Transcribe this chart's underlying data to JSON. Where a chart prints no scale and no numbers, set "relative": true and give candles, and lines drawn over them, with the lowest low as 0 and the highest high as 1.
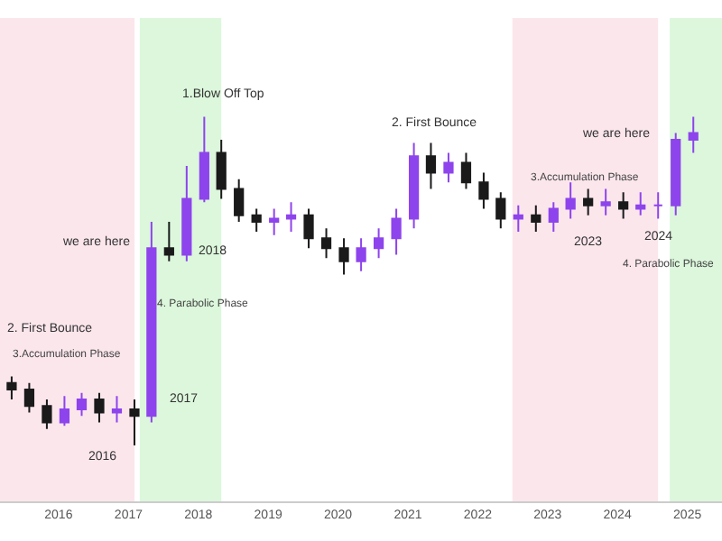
{
  "chart_data": {
    "type": "candlestick",
    "relative": true,
    "tick_labels": "x",
    "grid": false,
    "legend": false,
    "colors": [
      "#1a1a1a",
      "#1a1a1a",
      "#1a1a1a",
      "#8e44ec",
      "#8e44ec",
      "#1a1a1a",
      "#8e44ec",
      "#1a1a1a",
      "#8e44ec",
      "#1a1a1a",
      "#8e44ec",
      "#8e44ec",
      "#1a1a1a",
      "#1a1a1a",
      "#1a1a1a",
      "#8e44ec",
      "#8e44ec",
      "#1a1a1a",
      "#1a1a1a",
      "#1a1a1a",
      "#8e44ec",
      "#8e44ec",
      "#8e44ec",
      "#8e44ec",
      "#1a1a1a",
      "#8e44ec",
      "#1a1a1a",
      "#1a1a1a",
      "#1a1a1a",
      "#8e44ec",
      "#1a1a1a",
      "#8e44ec",
      "#8e44ec",
      "#1a1a1a",
      "#8e44ec",
      "#1a1a1a",
      "#8e44ec",
      "#8e44ec",
      "#8e44ec",
      "#8e44ec"
    ],
    "x": [
      "2015-05",
      "2015-08",
      "2015-11",
      "2016-02",
      "2016-05",
      "2016-08",
      "2016-11",
      "2017-02",
      "2017-05",
      "2017-08",
      "2017-11",
      "2018-02",
      "2018-05",
      "2018-08",
      "2018-11",
      "2019-02",
      "2019-05",
      "2019-08",
      "2019-11",
      "2020-02",
      "2020-05",
      "2020-08",
      "2020-11",
      "2021-02",
      "2021-05",
      "2021-08",
      "2021-11",
      "2022-02",
      "2022-05",
      "2022-08",
      "2022-11",
      "2023-02",
      "2023-05",
      "2023-08",
      "2023-11",
      "2024-02",
      "2024-05",
      "2024-08",
      "2024-11",
      "2025-02"
    ],
    "ohlc": [
      [
        0.19,
        0.21,
        0.14,
        0.17
      ],
      [
        0.17,
        0.19,
        0.1,
        0.12
      ],
      [
        0.12,
        0.14,
        0.05,
        0.07
      ],
      [
        0.07,
        0.15,
        0.06,
        0.11
      ],
      [
        0.11,
        0.16,
        0.09,
        0.14
      ],
      [
        0.14,
        0.16,
        0.07,
        0.1
      ],
      [
        0.1,
        0.15,
        0.07,
        0.11
      ],
      [
        0.11,
        0.14,
        0.0,
        0.09
      ],
      [
        0.09,
        0.68,
        0.07,
        0.6
      ],
      [
        0.6,
        0.68,
        0.56,
        0.58
      ],
      [
        0.58,
        0.85,
        0.56,
        0.75
      ],
      [
        0.75,
        1,
        0.74,
        0.89
      ],
      [
        0.89,
        0.93,
        0.75,
        0.78
      ],
      [
        0.78,
        0.81,
        0.68,
        0.7
      ],
      [
        0.7,
        0.72,
        0.65,
        0.68
      ],
      [
        0.68,
        0.72,
        0.64,
        0.69
      ],
      [
        0.69,
        0.74,
        0.65,
        0.7
      ],
      [
        0.7,
        0.72,
        0.6,
        0.63
      ],
      [
        0.63,
        0.66,
        0.57,
        0.6
      ],
      [
        0.6,
        0.63,
        0.52,
        0.56
      ],
      [
        0.56,
        0.63,
        0.53,
        0.6
      ],
      [
        0.6,
        0.66,
        0.57,
        0.63
      ],
      [
        0.63,
        0.72,
        0.58,
        0.69
      ],
      [
        0.69,
        0.92,
        0.66,
        0.88
      ],
      [
        0.88,
        0.92,
        0.78,
        0.83
      ],
      [
        0.83,
        0.89,
        0.8,
        0.86
      ],
      [
        0.86,
        0.89,
        0.78,
        0.8
      ],
      [
        0.8,
        0.83,
        0.72,
        0.75
      ],
      [
        0.75,
        0.77,
        0.66,
        0.69
      ],
      [
        0.69,
        0.73,
        0.65,
        0.7
      ],
      [
        0.7,
        0.73,
        0.65,
        0.68
      ],
      [
        0.68,
        0.74,
        0.65,
        0.72
      ],
      [
        0.72,
        0.8,
        0.69,
        0.75
      ],
      [
        0.75,
        0.78,
        0.7,
        0.73
      ],
      [
        0.73,
        0.78,
        0.7,
        0.74
      ],
      [
        0.74,
        0.77,
        0.69,
        0.72
      ],
      [
        0.72,
        0.77,
        0.7,
        0.73
      ],
      [
        0.73,
        0.77,
        0.69,
        0.73
      ],
      [
        0.73,
        0.95,
        0.7,
        0.93
      ],
      [
        0.93,
        1,
        0.89,
        0.95
      ]
    ],
    "xlim": [
      "2015-03",
      "2025-07"
    ],
    "xticks": [
      "2016",
      "2017",
      "2018",
      "2019",
      "2020",
      "2021",
      "2022",
      "2023",
      "2024",
      "2025"
    ],
    "bands": [
      {
        "axis": "x",
        "from": "2015-03",
        "to": "2017-02",
        "color": "#fbe6ec",
        "label": "3.Accumulation Phase"
      },
      {
        "axis": "x",
        "from": "2017-03",
        "to": "2018-05",
        "color": "#dcf7dc",
        "label": "4. Parabolic Phase"
      },
      {
        "axis": "x",
        "from": "2022-07",
        "to": "2024-08",
        "color": "#fbe6ec",
        "label": "3.Accumulation Phase"
      },
      {
        "axis": "x",
        "from": "2024-10",
        "to": "2025-07",
        "color": "#dcf7dc",
        "label": "4. Parabolic Phase"
      }
    ],
    "annotations": [
      "2. First Bounce",
      "we are here",
      {
        "text": "2016",
        "x": "2017-02",
        "y": 0.0
      },
      {
        "text": "2017",
        "x": "2017-05",
        "y": 0.07
      },
      "2018",
      {
        "text": "1.Blow Off Top",
        "x": "2018-02",
        "y": 1
      },
      {
        "text": "2. First Bounce",
        "x": "2021-02",
        "y": 0.92
      },
      {
        "text": "we are here",
        "x": "2024-11",
        "y": 0.95
      },
      {
        "text": "2023",
        "x": "2023-08",
        "y": 0.7
      },
      {
        "text": "2024",
        "x": "2024-08",
        "y": 0.69
      }
    ]
  }
}
